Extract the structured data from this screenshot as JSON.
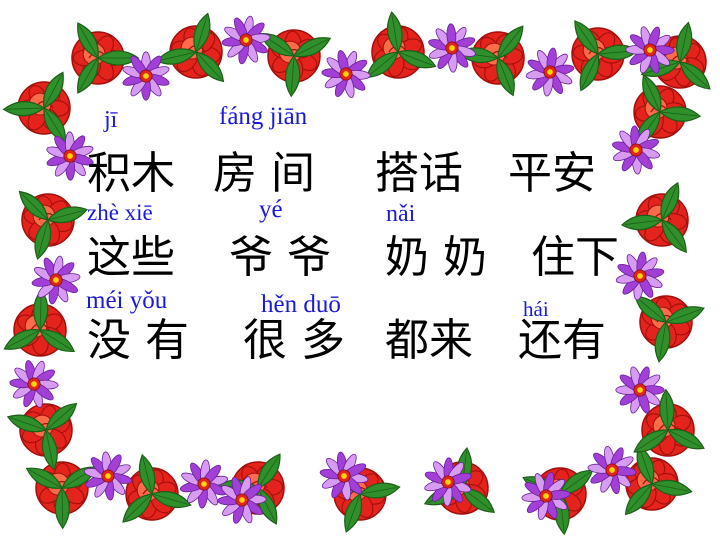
{
  "colors": {
    "background": "#ffffff",
    "pinyin": "#1a1ad6",
    "hanzi": "#000000",
    "rose": "#e3231c",
    "rose_dark": "#a30f0c",
    "rose_light": "#ff6a4a",
    "leaf": "#2f8f2a",
    "leaf_dark": "#1d5e19",
    "purple": "#a23fd6",
    "purple_light": "#d79cf2",
    "flower_center": "#ffd400"
  },
  "frame": {
    "icons": [
      "rose-flower-icon",
      "purple-star-flower-icon",
      "green-leaf-icon"
    ]
  },
  "rows": [
    {
      "pinyin": [
        {
          "id": "ji",
          "text": "jī"
        },
        {
          "id": "fang-jian",
          "text": "fáng  jiān"
        }
      ],
      "words": [
        {
          "id": "jimu",
          "text": "积木"
        },
        {
          "id": "fangjian",
          "text": "房 间"
        },
        {
          "id": "dahua",
          "text": "搭话"
        },
        {
          "id": "pingan",
          "text": "平安"
        }
      ]
    },
    {
      "pinyin": [
        {
          "id": "zhe-xie",
          "text": "zhè  xiē"
        },
        {
          "id": "ye",
          "text": "yé"
        },
        {
          "id": "nai",
          "text": "nǎi"
        }
      ],
      "words": [
        {
          "id": "zhexie",
          "text": "这些"
        },
        {
          "id": "yeye",
          "text": "爷 爷"
        },
        {
          "id": "nainai",
          "text": "奶 奶"
        },
        {
          "id": "zhuxia",
          "text": "住下"
        }
      ]
    },
    {
      "pinyin": [
        {
          "id": "mei-you",
          "text": "méi   yǒu"
        },
        {
          "id": "hen-duo",
          "text": "hěn  duō"
        },
        {
          "id": "hai",
          "text": "hái"
        }
      ],
      "words": [
        {
          "id": "meiyou",
          "text": "没 有"
        },
        {
          "id": "henduo",
          "text": "很 多"
        },
        {
          "id": "doulai",
          "text": "都来"
        },
        {
          "id": "haiyou",
          "text": "还有"
        }
      ]
    }
  ]
}
